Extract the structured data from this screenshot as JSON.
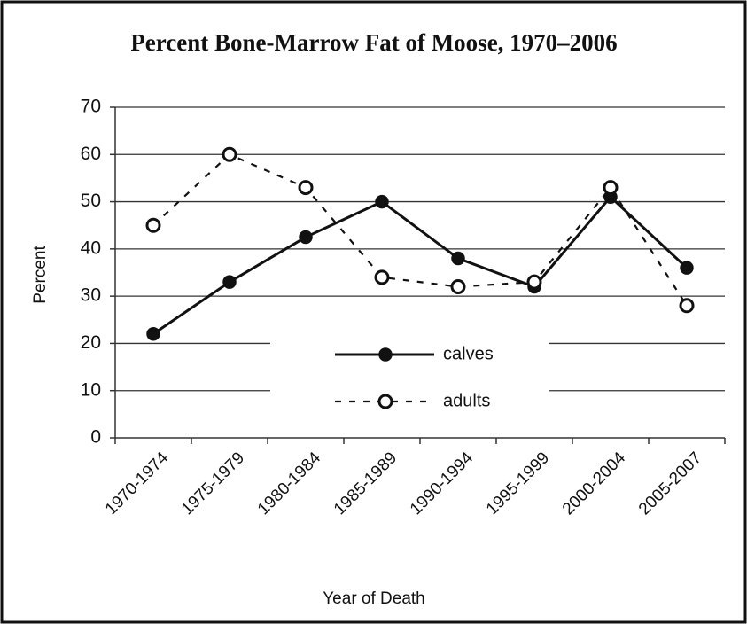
{
  "chart_data": {
    "type": "line",
    "title": "Percent Bone-Marrow Fat of Moose, 1970–2006",
    "x_label": "Year of Death",
    "y_label": "Percent",
    "categories": [
      "1970-1974",
      "1975-1979",
      "1980-1984",
      "1985-1989",
      "1990-1994",
      "1995-1999",
      "2000-2004",
      "2005-2007"
    ],
    "series": [
      {
        "name": "calves",
        "color": "#111111",
        "line_style": "solid",
        "marker": "filled",
        "values": [
          22,
          33,
          42.5,
          50,
          38,
          32,
          51,
          36
        ]
      },
      {
        "name": "adults",
        "color": "#111111",
        "line_style": "dashed",
        "marker": "open",
        "values": [
          45,
          60,
          53,
          34,
          32,
          33,
          53,
          28
        ]
      }
    ],
    "ylim": [
      0,
      70
    ],
    "yticks": [
      0,
      10,
      20,
      30,
      40,
      50,
      60,
      70
    ],
    "grid": true,
    "legend_position": "bottom-center"
  }
}
